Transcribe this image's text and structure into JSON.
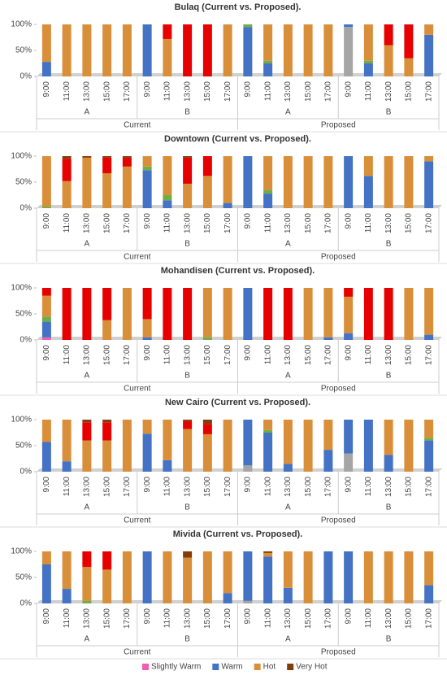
{
  "chart_data": [
    {
      "type": "bar",
      "stacked": true,
      "title": "Bulaq (Current vs. Proposed).",
      "categories": [
        "9:00",
        "11:00",
        "13:00",
        "15:00",
        "17:00",
        "9:00",
        "11:00",
        "13:00",
        "15:00",
        "17:00",
        "9:00",
        "11:00",
        "13:00",
        "15:00",
        "17:00",
        "9:00",
        "11:00",
        "13:00",
        "15:00",
        "17:00"
      ],
      "groups": [
        "A",
        "B",
        "A",
        "B"
      ],
      "super_groups": [
        "Current",
        "Proposed"
      ],
      "ylim": [
        0,
        100
      ],
      "yticks": [
        {
          "value": 0,
          "label": "0%"
        },
        {
          "value": 50,
          "label": "50%"
        },
        {
          "value": 100,
          "label": "100%"
        }
      ],
      "series": [
        {
          "color": "#a5a5a5",
          "values": [
            0,
            0,
            0,
            0,
            0,
            0,
            0,
            0,
            0,
            0,
            0,
            0,
            0,
            0,
            0,
            95,
            0,
            0,
            0,
            0
          ]
        },
        {
          "name": "Slightly Warm",
          "color": "#ee5fae",
          "values": [
            0,
            0,
            0,
            0,
            0,
            0,
            0,
            0,
            0,
            0,
            0,
            0,
            0,
            0,
            0,
            0,
            0,
            0,
            0,
            0
          ]
        },
        {
          "name": "Warm",
          "color": "#4472c4",
          "values": [
            28,
            0,
            0,
            0,
            0,
            100,
            0,
            0,
            0,
            0,
            95,
            25,
            0,
            0,
            0,
            5,
            25,
            0,
            0,
            80
          ]
        },
        {
          "color": "#70ad47",
          "values": [
            0,
            0,
            0,
            0,
            0,
            0,
            0,
            0,
            0,
            0,
            5,
            5,
            0,
            0,
            0,
            0,
            5,
            0,
            0,
            0
          ]
        },
        {
          "name": "Hot",
          "color": "#d98f3a",
          "values": [
            72,
            100,
            100,
            100,
            100,
            0,
            72,
            0,
            0,
            100,
            0,
            70,
            100,
            100,
            100,
            0,
            70,
            60,
            35,
            20
          ]
        },
        {
          "color": "#e60000",
          "values": [
            0,
            0,
            0,
            0,
            0,
            0,
            28,
            100,
            100,
            0,
            0,
            0,
            0,
            0,
            0,
            0,
            0,
            40,
            65,
            0
          ]
        },
        {
          "name": "Very Hot",
          "color": "#843c0c",
          "values": [
            0,
            0,
            0,
            0,
            0,
            0,
            0,
            0,
            0,
            0,
            0,
            0,
            0,
            0,
            0,
            0,
            0,
            0,
            0,
            0
          ]
        }
      ]
    },
    {
      "type": "bar",
      "stacked": true,
      "title": "Downtown (Current vs. Proposed).",
      "categories": [
        "9:00",
        "11:00",
        "13:00",
        "15:00",
        "17:00",
        "9:00",
        "11:00",
        "13:00",
        "15:00",
        "17:00",
        "9:00",
        "11:00",
        "13:00",
        "15:00",
        "17:00",
        "9:00",
        "11:00",
        "13:00",
        "15:00",
        "17:00"
      ],
      "groups": [
        "A",
        "B",
        "A",
        "B"
      ],
      "super_groups": [
        "Current",
        "Proposed"
      ],
      "ylim": [
        0,
        100
      ],
      "yticks": [
        {
          "value": 0,
          "label": "0%"
        },
        {
          "value": 50,
          "label": "50%"
        },
        {
          "value": 100,
          "label": "100%"
        }
      ],
      "series": [
        {
          "color": "#a5a5a5",
          "values": [
            0,
            0,
            0,
            0,
            0,
            0,
            0,
            0,
            0,
            0,
            0,
            0,
            0,
            0,
            0,
            0,
            0,
            0,
            0,
            0
          ]
        },
        {
          "name": "Slightly Warm",
          "color": "#ee5fae",
          "values": [
            0,
            0,
            0,
            0,
            0,
            0,
            0,
            0,
            0,
            0,
            0,
            0,
            0,
            0,
            0,
            0,
            0,
            0,
            0,
            0
          ]
        },
        {
          "name": "Warm",
          "color": "#4472c4",
          "values": [
            0,
            0,
            0,
            0,
            0,
            73,
            15,
            0,
            0,
            10,
            100,
            28,
            0,
            0,
            0,
            100,
            62,
            0,
            0,
            90
          ]
        },
        {
          "color": "#70ad47",
          "values": [
            3,
            0,
            0,
            0,
            0,
            7,
            10,
            0,
            0,
            0,
            0,
            7,
            0,
            0,
            0,
            0,
            0,
            0,
            0,
            0
          ]
        },
        {
          "name": "Hot",
          "color": "#d98f3a",
          "values": [
            97,
            52,
            97,
            67,
            80,
            20,
            75,
            47,
            62,
            90,
            0,
            65,
            100,
            100,
            100,
            0,
            38,
            100,
            100,
            10
          ]
        },
        {
          "color": "#e60000",
          "values": [
            0,
            43,
            0,
            30,
            17,
            0,
            0,
            50,
            38,
            0,
            0,
            0,
            0,
            0,
            0,
            0,
            0,
            0,
            0,
            0
          ]
        },
        {
          "name": "Very Hot",
          "color": "#843c0c",
          "values": [
            0,
            5,
            3,
            3,
            3,
            0,
            0,
            3,
            0,
            0,
            0,
            0,
            0,
            0,
            0,
            0,
            0,
            0,
            0,
            0
          ]
        }
      ]
    },
    {
      "type": "bar",
      "stacked": true,
      "title": "Mohandisen (Current vs. Proposed).",
      "categories": [
        "9:00",
        "11:00",
        "13:00",
        "15:00",
        "17:00",
        "9:00",
        "11:00",
        "13:00",
        "15:00",
        "17:00",
        "9:00",
        "11:00",
        "13:00",
        "15:00",
        "17:00",
        "9:00",
        "11:00",
        "13:00",
        "15:00",
        "17:00"
      ],
      "groups": [
        "A",
        "B",
        "A",
        "B"
      ],
      "super_groups": [
        "Current",
        "Proposed"
      ],
      "ylim": [
        0,
        100
      ],
      "yticks": [
        {
          "value": 0,
          "label": "0%"
        },
        {
          "value": 50,
          "label": "50%"
        },
        {
          "value": 100,
          "label": "100%"
        }
      ],
      "series": [
        {
          "color": "#a5a5a5",
          "values": [
            0,
            0,
            0,
            0,
            0,
            0,
            0,
            0,
            0,
            0,
            0,
            0,
            0,
            0,
            0,
            0,
            0,
            0,
            0,
            0
          ]
        },
        {
          "name": "Slightly Warm",
          "color": "#ee5fae",
          "values": [
            5,
            0,
            0,
            0,
            0,
            0,
            0,
            0,
            0,
            0,
            0,
            0,
            0,
            0,
            0,
            0,
            0,
            0,
            0,
            0
          ]
        },
        {
          "name": "Warm",
          "color": "#4472c4",
          "values": [
            30,
            0,
            0,
            0,
            0,
            5,
            0,
            0,
            0,
            0,
            100,
            0,
            0,
            0,
            5,
            13,
            0,
            0,
            0,
            10
          ]
        },
        {
          "color": "#70ad47",
          "values": [
            10,
            0,
            0,
            0,
            0,
            0,
            0,
            0,
            5,
            0,
            0,
            0,
            0,
            0,
            0,
            0,
            0,
            0,
            0,
            0
          ]
        },
        {
          "name": "Hot",
          "color": "#d98f3a",
          "values": [
            40,
            0,
            0,
            38,
            100,
            35,
            0,
            0,
            95,
            100,
            0,
            0,
            0,
            100,
            95,
            70,
            0,
            0,
            100,
            90
          ]
        },
        {
          "color": "#e60000",
          "values": [
            15,
            100,
            100,
            62,
            0,
            60,
            100,
            100,
            0,
            0,
            0,
            100,
            100,
            0,
            0,
            17,
            100,
            100,
            0,
            0
          ]
        },
        {
          "name": "Very Hot",
          "color": "#843c0c",
          "values": [
            0,
            0,
            0,
            0,
            0,
            0,
            0,
            0,
            0,
            0,
            0,
            0,
            0,
            0,
            0,
            0,
            0,
            0,
            0,
            0
          ]
        }
      ]
    },
    {
      "type": "bar",
      "stacked": true,
      "title": "New Cairo (Current vs. Proposed).",
      "categories": [
        "9:00",
        "11:00",
        "13:00",
        "15:00",
        "17:00",
        "9:00",
        "11:00",
        "13:00",
        "15:00",
        "17:00",
        "9:00",
        "11:00",
        "13:00",
        "15:00",
        "17:00",
        "9:00",
        "11:00",
        "13:00",
        "15:00",
        "17:00"
      ],
      "groups": [
        "A",
        "B",
        "A",
        "B"
      ],
      "super_groups": [
        "Current",
        "Proposed"
      ],
      "ylim": [
        0,
        100
      ],
      "yticks": [
        {
          "value": 0,
          "label": "0%"
        },
        {
          "value": 50,
          "label": "50%"
        },
        {
          "value": 100,
          "label": "100%"
        }
      ],
      "series": [
        {
          "color": "#a5a5a5",
          "values": [
            0,
            0,
            0,
            0,
            0,
            0,
            0,
            0,
            0,
            0,
            12,
            0,
            0,
            0,
            0,
            35,
            0,
            0,
            0,
            0
          ]
        },
        {
          "name": "Slightly Warm",
          "color": "#ee5fae",
          "values": [
            0,
            0,
            0,
            0,
            0,
            0,
            0,
            0,
            0,
            0,
            0,
            0,
            0,
            0,
            0,
            0,
            0,
            0,
            0,
            0
          ]
        },
        {
          "name": "Warm",
          "color": "#4472c4",
          "values": [
            57,
            20,
            0,
            0,
            0,
            73,
            22,
            0,
            0,
            0,
            88,
            75,
            15,
            0,
            42,
            65,
            100,
            32,
            0,
            60
          ]
        },
        {
          "color": "#70ad47",
          "values": [
            0,
            0,
            0,
            0,
            0,
            0,
            0,
            0,
            0,
            0,
            0,
            5,
            0,
            0,
            0,
            0,
            0,
            0,
            0,
            5
          ]
        },
        {
          "name": "Hot",
          "color": "#d98f3a",
          "values": [
            43,
            80,
            60,
            60,
            100,
            27,
            78,
            82,
            72,
            100,
            0,
            20,
            85,
            100,
            58,
            0,
            0,
            68,
            100,
            35
          ]
        },
        {
          "color": "#e60000",
          "values": [
            0,
            0,
            35,
            35,
            0,
            0,
            0,
            15,
            20,
            0,
            0,
            0,
            0,
            0,
            0,
            0,
            0,
            0,
            0,
            0
          ]
        },
        {
          "name": "Very Hot",
          "color": "#843c0c",
          "values": [
            0,
            0,
            5,
            5,
            0,
            0,
            0,
            3,
            8,
            0,
            0,
            0,
            0,
            0,
            0,
            0,
            0,
            0,
            0,
            0
          ]
        }
      ]
    },
    {
      "type": "bar",
      "stacked": true,
      "title": "Mivida (Current vs. Proposed).",
      "categories": [
        "9:00",
        "11:00",
        "13:00",
        "15:00",
        "17:00",
        "9:00",
        "11:00",
        "13:00",
        "15:00",
        "17:00",
        "9:00",
        "11:00",
        "13:00",
        "15:00",
        "17:00",
        "9:00",
        "11:00",
        "13:00",
        "15:00",
        "17:00"
      ],
      "groups": [
        "A",
        "B",
        "A",
        "B"
      ],
      "super_groups": [
        "Current",
        "Proposed"
      ],
      "ylim": [
        0,
        100
      ],
      "yticks": [
        {
          "value": 0,
          "label": "0%"
        },
        {
          "value": 50,
          "label": "50%"
        },
        {
          "value": 100,
          "label": "100%"
        }
      ],
      "series": [
        {
          "color": "#a5a5a5",
          "values": [
            0,
            0,
            0,
            0,
            0,
            0,
            0,
            0,
            0,
            0,
            5,
            0,
            0,
            0,
            0,
            0,
            0,
            0,
            0,
            0
          ]
        },
        {
          "name": "Slightly Warm",
          "color": "#ee5fae",
          "values": [
            0,
            0,
            0,
            0,
            0,
            0,
            0,
            0,
            0,
            0,
            0,
            0,
            0,
            0,
            0,
            0,
            0,
            0,
            0,
            0
          ]
        },
        {
          "name": "Warm",
          "color": "#4472c4",
          "values": [
            75,
            28,
            0,
            0,
            0,
            100,
            0,
            0,
            0,
            20,
            95,
            90,
            30,
            0,
            100,
            100,
            0,
            0,
            0,
            35
          ]
        },
        {
          "color": "#70ad47",
          "values": [
            0,
            0,
            5,
            0,
            0,
            0,
            0,
            0,
            0,
            0,
            0,
            0,
            0,
            0,
            0,
            0,
            0,
            0,
            0,
            0
          ]
        },
        {
          "name": "Hot",
          "color": "#d98f3a",
          "values": [
            25,
            72,
            65,
            65,
            100,
            0,
            100,
            88,
            100,
            80,
            0,
            7,
            70,
            100,
            0,
            0,
            100,
            100,
            100,
            65
          ]
        },
        {
          "color": "#e60000",
          "values": [
            0,
            0,
            30,
            35,
            0,
            0,
            0,
            0,
            0,
            0,
            0,
            0,
            0,
            0,
            0,
            0,
            0,
            0,
            0,
            0
          ]
        },
        {
          "name": "Very Hot",
          "color": "#843c0c",
          "values": [
            0,
            0,
            0,
            0,
            0,
            0,
            0,
            12,
            0,
            0,
            0,
            3,
            0,
            0,
            0,
            0,
            0,
            0,
            0,
            0
          ]
        }
      ]
    }
  ]
}
